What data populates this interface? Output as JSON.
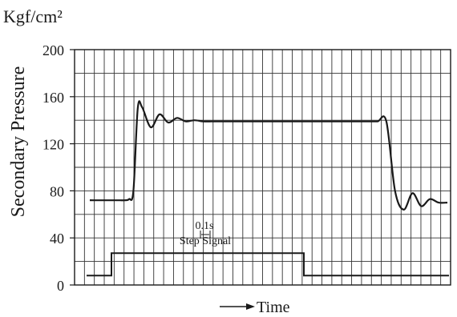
{
  "chart_data": {
    "type": "line",
    "unit": "Kgf/cm²",
    "ylabel": "Secondary Pressure",
    "xlabel": "Time",
    "ylim": [
      0,
      200
    ],
    "yticks": [
      "200",
      "160",
      "120",
      "80",
      "40",
      "0"
    ],
    "grid": true,
    "annotations": {
      "time_scale": "0.1s",
      "step_signal": "Step Signal"
    },
    "series": [
      {
        "x": [
          0.0,
          0.1,
          0.15,
          0.2,
          0.25,
          0.3,
          0.35,
          0.4,
          0.45,
          0.5,
          0.55,
          0.6,
          0.7,
          0.8,
          0.9,
          1.0,
          1.1,
          1.2,
          1.4,
          1.6,
          1.8,
          2.0,
          2.2,
          2.4,
          2.6,
          2.8,
          3.0,
          3.2,
          3.4,
          3.6,
          3.7,
          3.8,
          3.9,
          4.0,
          4.1,
          4.2,
          4.3,
          4.4,
          4.5,
          4.6,
          4.7,
          4.8,
          4.9,
          5.0,
          5.1,
          5.2,
          5.3,
          5.4,
          5.5,
          5.6,
          5.8,
          6.0,
          6.2,
          6.4,
          6.6,
          6.8,
          7.0,
          7.2,
          7.4,
          7.6,
          7.8,
          8.0,
          8.2
        ],
        "values": [
          72,
          72,
          72,
          72,
          72,
          72,
          72,
          72,
          72,
          72,
          72,
          72,
          72,
          72,
          73,
          80,
          150,
          151,
          134,
          145,
          138,
          142,
          139,
          140,
          139,
          139,
          139,
          139,
          139,
          139,
          139,
          139,
          139,
          139,
          139,
          139,
          139,
          139,
          139,
          139,
          139,
          139,
          139,
          139,
          139,
          139,
          139,
          139,
          139,
          139,
          139,
          139,
          139,
          139,
          139,
          139,
          80,
          64,
          78,
          67,
          73,
          70,
          70
        ]
      }
    ]
  }
}
